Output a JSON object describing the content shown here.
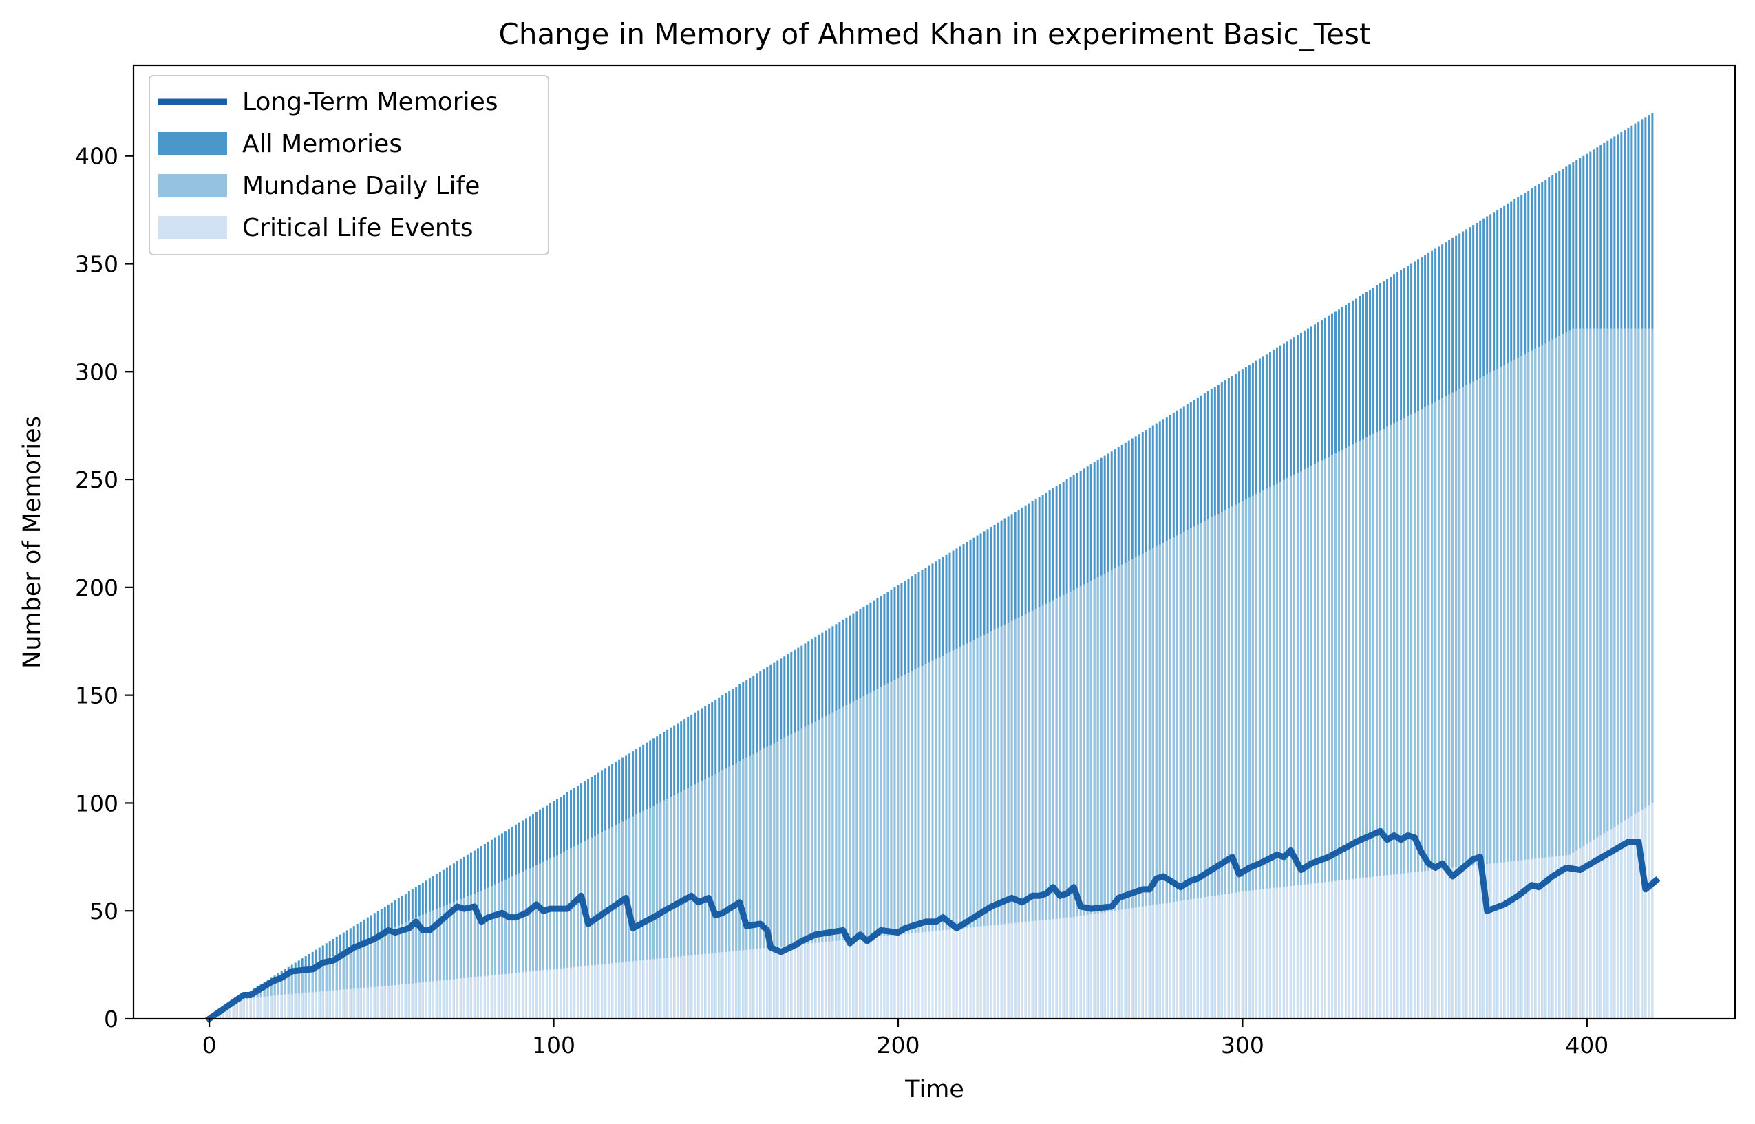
{
  "chart_data": {
    "type": "bar",
    "title": "Change in Memory of Ahmed Khan in experiment Basic_Test",
    "xlabel": "Time",
    "ylabel": "Number of Memories",
    "xlim": [
      -22,
      443
    ],
    "ylim": [
      0,
      442
    ],
    "xticks": [
      0,
      100,
      200,
      300,
      400
    ],
    "yticks": [
      0,
      50,
      100,
      150,
      200,
      250,
      300,
      350,
      400
    ],
    "grid": false,
    "legend_position": "top-left",
    "colors": {
      "long_term": "#1a5fa6",
      "all": "#4b97c9",
      "mundane": "#95c3df",
      "critical": "#cfe1f2"
    },
    "series": [
      {
        "name": "Long-Term Memories",
        "type": "line",
        "color": "#1a5fa6",
        "x": [
          0,
          10,
          12,
          18,
          21,
          24,
          30,
          33,
          36,
          39,
          42,
          45,
          48,
          52,
          54,
          58,
          60,
          62,
          64,
          72,
          74,
          77,
          79,
          81,
          85,
          87,
          89,
          92,
          95,
          97,
          99,
          104,
          108,
          110,
          121,
          123,
          130,
          132,
          140,
          142,
          145,
          147,
          149,
          154,
          156,
          160,
          162,
          163,
          166,
          170,
          172,
          176,
          180,
          184,
          186,
          189,
          191,
          195,
          200,
          202,
          208,
          211,
          213,
          217,
          225,
          227,
          233,
          236,
          239,
          241,
          243,
          245,
          247,
          249,
          251,
          253,
          256,
          262,
          264,
          271,
          273,
          275,
          277,
          282,
          285,
          287,
          297,
          299,
          302,
          305,
          310,
          312,
          314,
          317,
          320,
          325,
          333,
          340,
          342,
          344,
          346,
          348,
          350,
          352,
          354,
          356,
          358,
          361,
          367,
          369,
          371,
          376,
          380,
          384,
          386,
          390,
          394,
          398,
          412,
          414,
          415,
          417,
          420
        ],
        "y": [
          0,
          11,
          11,
          17,
          19,
          22,
          23,
          26,
          27,
          30,
          33,
          35,
          37,
          41,
          40,
          42,
          45,
          41,
          41,
          52,
          51,
          52,
          45,
          47,
          49,
          47,
          47,
          49,
          53,
          50,
          51,
          51,
          57,
          44,
          56,
          42,
          48,
          50,
          57,
          54,
          56,
          48,
          49,
          54,
          43,
          44,
          41,
          33,
          31,
          34,
          36,
          39,
          40,
          41,
          35,
          39,
          36,
          41,
          40,
          42,
          45,
          45,
          47,
          42,
          50,
          52,
          56,
          54,
          57,
          57,
          58,
          61,
          57,
          58,
          61,
          52,
          51,
          52,
          56,
          60,
          60,
          65,
          66,
          61,
          64,
          65,
          75,
          67,
          70,
          72,
          76,
          75,
          78,
          69,
          72,
          75,
          82,
          87,
          83,
          85,
          83,
          85,
          84,
          77,
          72,
          70,
          72,
          66,
          74,
          75,
          50,
          53,
          57,
          62,
          61,
          66,
          70,
          69,
          82,
          82,
          82,
          60,
          64
        ]
      },
      {
        "name": "All Memories",
        "type": "bar",
        "color": "#4b97c9",
        "x_range": [
          0,
          419
        ],
        "values_rule": "value at time t equals t",
        "final_value": 420
      },
      {
        "name": "Mundane Daily Life",
        "type": "bar",
        "color": "#95c3df",
        "x": [
          0,
          10,
          20,
          40,
          60,
          80,
          100,
          150,
          200,
          250,
          300,
          350,
          396,
          419
        ],
        "y": [
          0,
          9,
          17,
          32,
          47,
          60,
          75,
          116,
          158,
          198,
          240,
          281,
          320,
          320
        ]
      },
      {
        "name": "Critical Life Events",
        "type": "bar",
        "color": "#cfe1f2",
        "x": [
          0,
          10,
          20,
          50,
          100,
          150,
          200,
          250,
          300,
          350,
          395,
          419
        ],
        "y": [
          0,
          9,
          11,
          15,
          23,
          31,
          39,
          47,
          59,
          68,
          76,
          100
        ]
      }
    ]
  }
}
